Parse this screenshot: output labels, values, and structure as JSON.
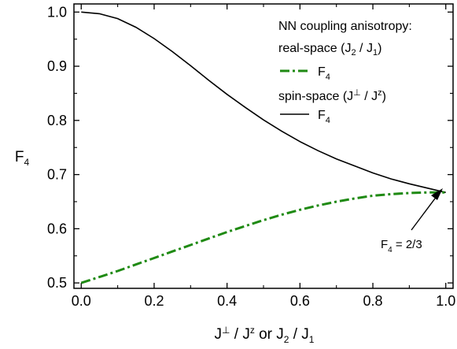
{
  "chart_data": {
    "type": "line",
    "title": "",
    "xlabel": "J⊥ / Jz or J2 / J1",
    "xlabel_parts": {
      "a": "J",
      "a_sup": "⊥",
      "sep": " / ",
      "b": "J",
      "b_sup": "z",
      "or": " or ",
      "c": "J",
      "c_sub": "2",
      "sep2": " / ",
      "d": "J",
      "d_sub": "1"
    },
    "ylabel": "F4",
    "ylabel_parts": {
      "main": "F",
      "sub": "4"
    },
    "xlim": [
      -0.02,
      1.02
    ],
    "ylim": [
      0.49,
      1.015
    ],
    "xticks": [
      0.0,
      0.2,
      0.4,
      0.6,
      0.8,
      1.0
    ],
    "xtick_labels": [
      "0.0",
      "0.2",
      "0.4",
      "0.6",
      "0.8",
      "1.0"
    ],
    "yticks": [
      0.5,
      0.6,
      0.7,
      0.8,
      0.9,
      1.0
    ],
    "ytick_labels": [
      "0.5",
      "0.6",
      "0.7",
      "0.8",
      "0.9",
      "1.0"
    ],
    "grid": false,
    "legend": {
      "placement": "top-right",
      "heading": "NN coupling anisotropy:",
      "group1": {
        "label": "real-space (",
        "j": "J",
        "j_sub": "2",
        "sep": " / ",
        "j2": "J",
        "j2_sub": "1",
        "close": ")"
      },
      "entry1": {
        "main": "F",
        "sub": "4"
      },
      "group2": {
        "label": "spin-space (",
        "j": "J",
        "j_sup": "⊥",
        "sep": " / ",
        "j2": "J",
        "j2_sup": "z",
        "close": ")"
      },
      "entry2": {
        "main": "F",
        "sub": "4"
      }
    },
    "annotation": {
      "main": "F",
      "sub": "4",
      "rest": " = 2/3",
      "x": 1.0,
      "y": 0.667
    },
    "series": [
      {
        "id": "spin-space",
        "color": "#000000",
        "style": "solid",
        "x": [
          0.0,
          0.05,
          0.1,
          0.15,
          0.2,
          0.25,
          0.3,
          0.35,
          0.4,
          0.45,
          0.5,
          0.55,
          0.6,
          0.65,
          0.7,
          0.75,
          0.8,
          0.85,
          0.9,
          0.95,
          1.0
        ],
        "values": [
          1.0,
          0.997,
          0.988,
          0.972,
          0.951,
          0.927,
          0.901,
          0.874,
          0.848,
          0.824,
          0.801,
          0.78,
          0.761,
          0.744,
          0.729,
          0.716,
          0.703,
          0.692,
          0.683,
          0.675,
          0.667
        ]
      },
      {
        "id": "real-space",
        "color": "#1f8a13",
        "style": "dash-dot",
        "x": [
          0.0,
          0.05,
          0.1,
          0.15,
          0.2,
          0.25,
          0.3,
          0.35,
          0.4,
          0.45,
          0.5,
          0.55,
          0.6,
          0.65,
          0.7,
          0.75,
          0.8,
          0.85,
          0.9,
          0.95,
          1.0
        ],
        "values": [
          0.5,
          0.511,
          0.522,
          0.534,
          0.546,
          0.558,
          0.57,
          0.582,
          0.594,
          0.605,
          0.616,
          0.626,
          0.635,
          0.643,
          0.65,
          0.656,
          0.661,
          0.664,
          0.666,
          0.667,
          0.667
        ]
      }
    ]
  }
}
